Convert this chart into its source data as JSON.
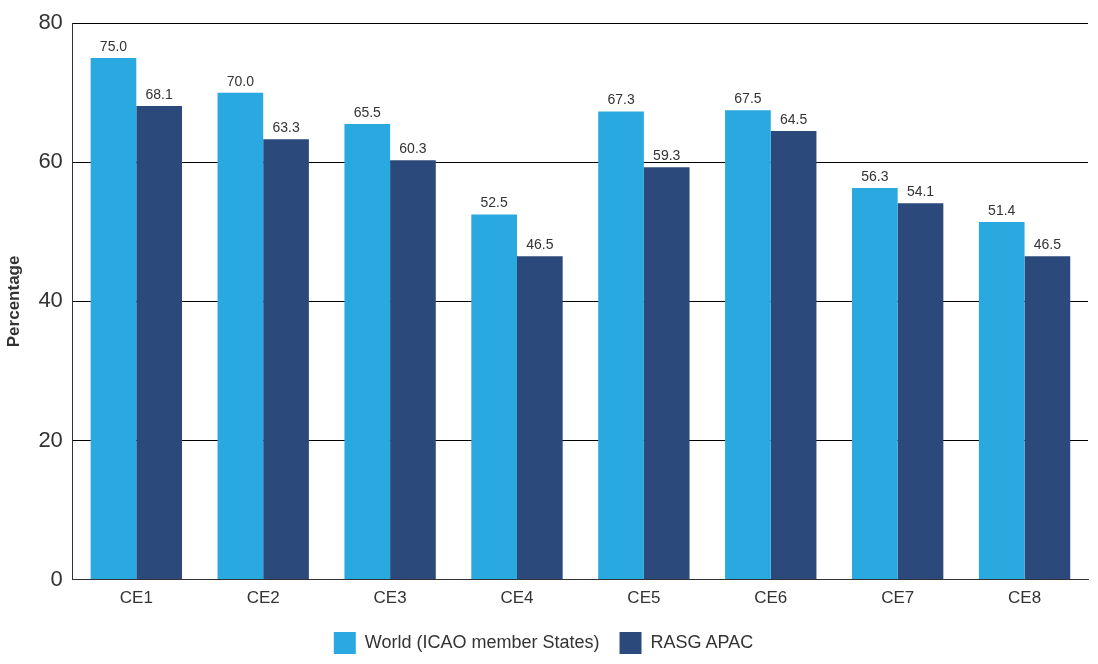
{
  "chart_data": {
    "type": "bar",
    "ylabel": "Percentage",
    "categories": [
      "CE1",
      "CE2",
      "CE3",
      "CE4",
      "CE5",
      "CE6",
      "CE7",
      "CE8"
    ],
    "series": [
      {
        "name": "World (ICAO member States)",
        "color": "#2aa9e0",
        "values": [
          75.0,
          70.0,
          65.5,
          52.5,
          67.3,
          67.5,
          56.3,
          51.4
        ],
        "value_labels": [
          "75.0",
          "70.0",
          "65.5",
          "52.5",
          "67.3",
          "67.5",
          "56.3",
          "51.4"
        ]
      },
      {
        "name": "RASG APAC",
        "color": "#2b4a7b",
        "values": [
          68.1,
          63.3,
          60.3,
          46.5,
          59.3,
          64.5,
          54.1,
          46.5
        ],
        "value_labels": [
          "68.1",
          "63.3",
          "60.3",
          "46.5",
          "59.3",
          "64.5",
          "54.1",
          "46.5"
        ]
      }
    ],
    "ylim": [
      0,
      80
    ],
    "yticks": [
      0,
      20,
      40,
      60,
      80
    ],
    "grid": "y",
    "legend": "bottom"
  }
}
